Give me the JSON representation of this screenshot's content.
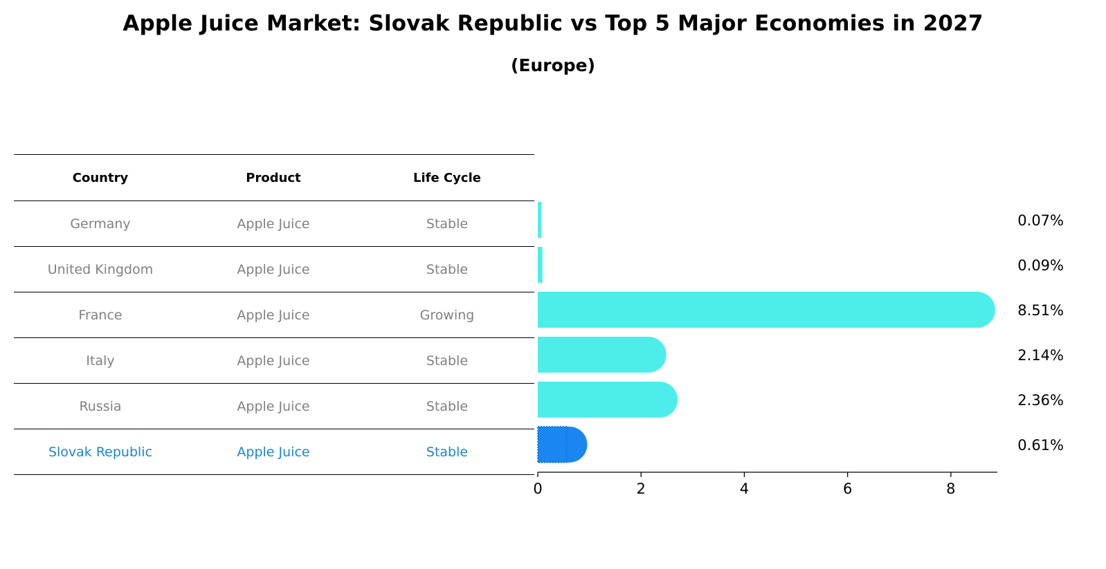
{
  "title": "Apple Juice Market: Slovak Republic vs Top 5 Major Economies in 2027",
  "subtitle": "(Europe)",
  "table": {
    "headers": [
      "Country",
      "Product",
      "Life Cycle"
    ],
    "rows": [
      {
        "country": "Germany",
        "product": "Apple Juice",
        "life_cycle": "Stable"
      },
      {
        "country": "United Kingdom",
        "product": "Apple Juice",
        "life_cycle": "Stable"
      },
      {
        "country": "France",
        "product": "Apple Juice",
        "life_cycle": "Growing"
      },
      {
        "country": "Italy",
        "product": "Apple Juice",
        "life_cycle": "Stable"
      },
      {
        "country": "Russia",
        "product": "Apple Juice",
        "life_cycle": "Stable"
      },
      {
        "country": "Slovak Republic",
        "product": "Apple Juice",
        "life_cycle": "Stable"
      }
    ]
  },
  "colors": {
    "bar": "#4deeea",
    "highlight": "#1a86f0",
    "highlight_text": "#1a86d6",
    "muted_text": "#808080"
  },
  "chart_data": {
    "type": "bar",
    "orientation": "horizontal",
    "categories": [
      "Germany",
      "United Kingdom",
      "France",
      "Italy",
      "Russia",
      "Slovak Republic"
    ],
    "values": [
      0.07,
      0.09,
      8.51,
      2.14,
      2.36,
      0.61
    ],
    "value_labels": [
      "0.07%",
      "0.09%",
      "8.51%",
      "2.14%",
      "2.36%",
      "0.61%"
    ],
    "highlight": "Slovak Republic",
    "xlim": [
      0,
      8.9
    ],
    "xticks": [
      0,
      2,
      4,
      6,
      8
    ],
    "xlabel": "",
    "ylabel": "",
    "grid": false
  }
}
